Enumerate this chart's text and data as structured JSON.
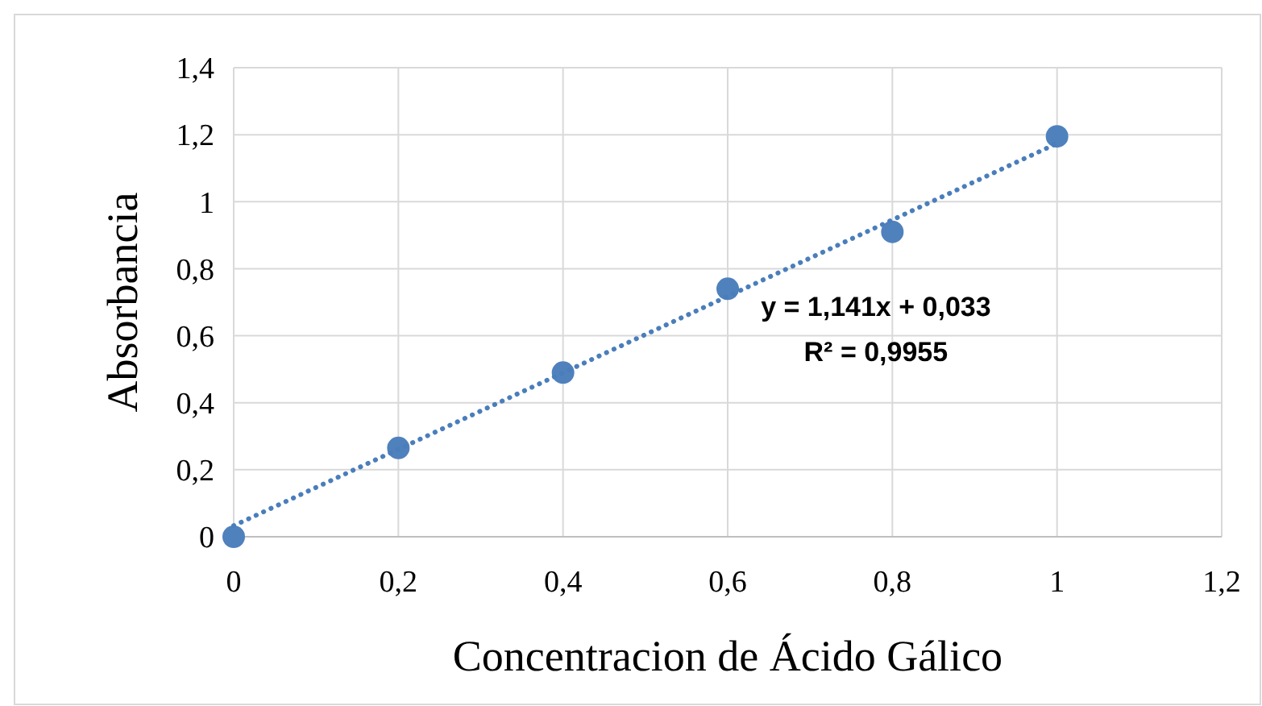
{
  "chart_data": {
    "type": "scatter",
    "xlabel": "Concentracion de Ácido Gálico",
    "ylabel": "Absorbancia",
    "x": [
      0,
      0.2,
      0.4,
      0.6,
      0.8,
      1
    ],
    "series": [
      {
        "color": "#4f81bd",
        "marker": "circle",
        "values": [
          0,
          0.265,
          0.49,
          0.74,
          0.91,
          1.195
        ]
      },
      {
        "type": "line",
        "color": "#4a7ebb",
        "line_style": "dotted",
        "marker": "none",
        "x": [
          0,
          1
        ],
        "values": [
          0.033,
          1.174
        ]
      }
    ],
    "xlim": [
      0,
      1.2
    ],
    "xticks": [
      0,
      {
        "value": 0.2,
        "label": "0,2"
      },
      {
        "value": 0.4,
        "label": "0,4"
      },
      {
        "value": 0.6,
        "label": "0,6"
      },
      {
        "value": 0.8,
        "label": "0,8"
      },
      1,
      {
        "value": 1.2,
        "label": "1,2"
      }
    ],
    "ylim": [
      0,
      1.4
    ],
    "yticks": [
      0,
      {
        "value": 0.2,
        "label": "0,2"
      },
      {
        "value": 0.4,
        "label": "0,4"
      },
      {
        "value": 0.6,
        "label": "0,6"
      },
      {
        "value": 0.8,
        "label": "0,8"
      },
      1,
      {
        "value": 1.2,
        "label": "1,2"
      },
      {
        "value": 1.4,
        "label": "1,4"
      }
    ],
    "grid": true,
    "annotations": [
      "y = 1,141x + 0,033",
      "R² = 0,9955"
    ]
  }
}
